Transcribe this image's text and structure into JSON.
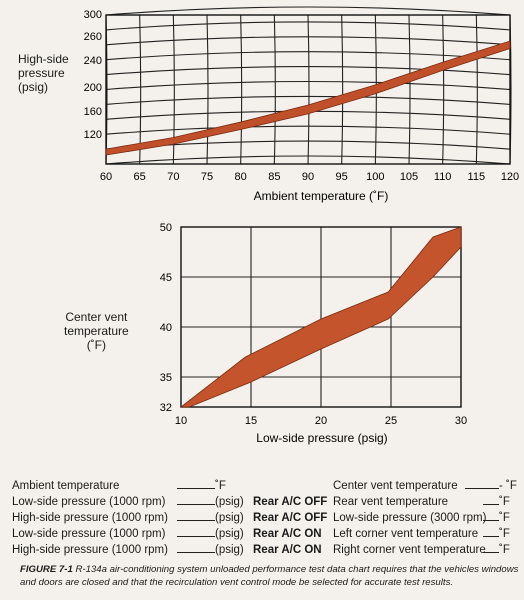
{
  "chart_data": [
    {
      "type": "area",
      "ylabel_lines": [
        "High-side",
        "pressure",
        "(psig)"
      ],
      "xlabel": "Ambient temperature (˚F)",
      "xlim": [
        60,
        120
      ],
      "ylim": [
        100,
        300
      ],
      "x_ticks": [
        "60",
        "65",
        "70",
        "75",
        "80",
        "85",
        "90",
        "95",
        "100",
        "105",
        "110",
        "115",
        "120"
      ],
      "y_ticks": [
        "300",
        "260",
        "240",
        "200",
        "160",
        "120"
      ],
      "grid": true,
      "band_color": "#c0502a",
      "band_upper": [
        [
          60,
          120
        ],
        [
          70,
          132
        ],
        [
          80,
          150
        ],
        [
          90,
          172
        ],
        [
          100,
          200
        ],
        [
          110,
          233
        ],
        [
          120,
          265
        ]
      ],
      "band_lower": [
        [
          60,
          112
        ],
        [
          70,
          123
        ],
        [
          80,
          140
        ],
        [
          90,
          160
        ],
        [
          100,
          188
        ],
        [
          110,
          222
        ],
        [
          120,
          255
        ]
      ]
    },
    {
      "type": "area",
      "ylabel_lines": [
        "Center vent",
        "temperature",
        "(˚F)"
      ],
      "xlabel": "Low-side pressure (psig)",
      "xlim": [
        10,
        30
      ],
      "ylim": [
        32,
        50
      ],
      "x_ticks": [
        "10",
        "15",
        "20",
        "25",
        "30"
      ],
      "y_ticks": [
        "50",
        "45",
        "40",
        "35",
        "32"
      ],
      "grid": true,
      "band_color": "#c4542b",
      "band_upper": [
        [
          10,
          32
        ],
        [
          14.6,
          37
        ],
        [
          20,
          40.8
        ],
        [
          24.8,
          43.5
        ],
        [
          28,
          49
        ],
        [
          30,
          50
        ]
      ],
      "band_lower": [
        [
          10.6,
          32
        ],
        [
          15,
          34.5
        ],
        [
          20,
          37.8
        ],
        [
          24.8,
          40.8
        ],
        [
          28,
          45
        ],
        [
          30,
          48
        ]
      ]
    }
  ],
  "form": {
    "left": [
      {
        "label": "Ambient temperature",
        "unit": "˚F",
        "mode": ""
      },
      {
        "label": "Low-side pressure  (1000 rpm)",
        "unit": "(psig)",
        "mode": "Rear A/C OFF"
      },
      {
        "label": "High-side pressure (1000 rpm)",
        "unit": "(psig)",
        "mode": "Rear A/C OFF"
      },
      {
        "label": "Low-side pressure  (1000 rpm)",
        "unit": "(psig)",
        "mode": "Rear A/C ON"
      },
      {
        "label": "High-side pressure (1000 rpm)",
        "unit": "(psig)",
        "mode": "Rear A/C ON"
      }
    ],
    "right": [
      {
        "label": "Center vent temperature",
        "unit": "- ˚F"
      },
      {
        "label": "Rear vent temperature",
        "unit": "˚F"
      },
      {
        "label": "Low-side pressure (3000 rpm)",
        "unit": "˚F"
      },
      {
        "label": "Left corner vent temperature",
        "unit": "˚F"
      },
      {
        "label": "Right corner vent temperature",
        "unit": "˚F"
      }
    ]
  },
  "caption": {
    "lead": "FIGURE 7-1",
    "text": "R-134a air-conditioning system unloaded performance test data chart requires that the vehicles windows and doors are closed and that the recirculation vent control mode be selected for accurate test results."
  }
}
